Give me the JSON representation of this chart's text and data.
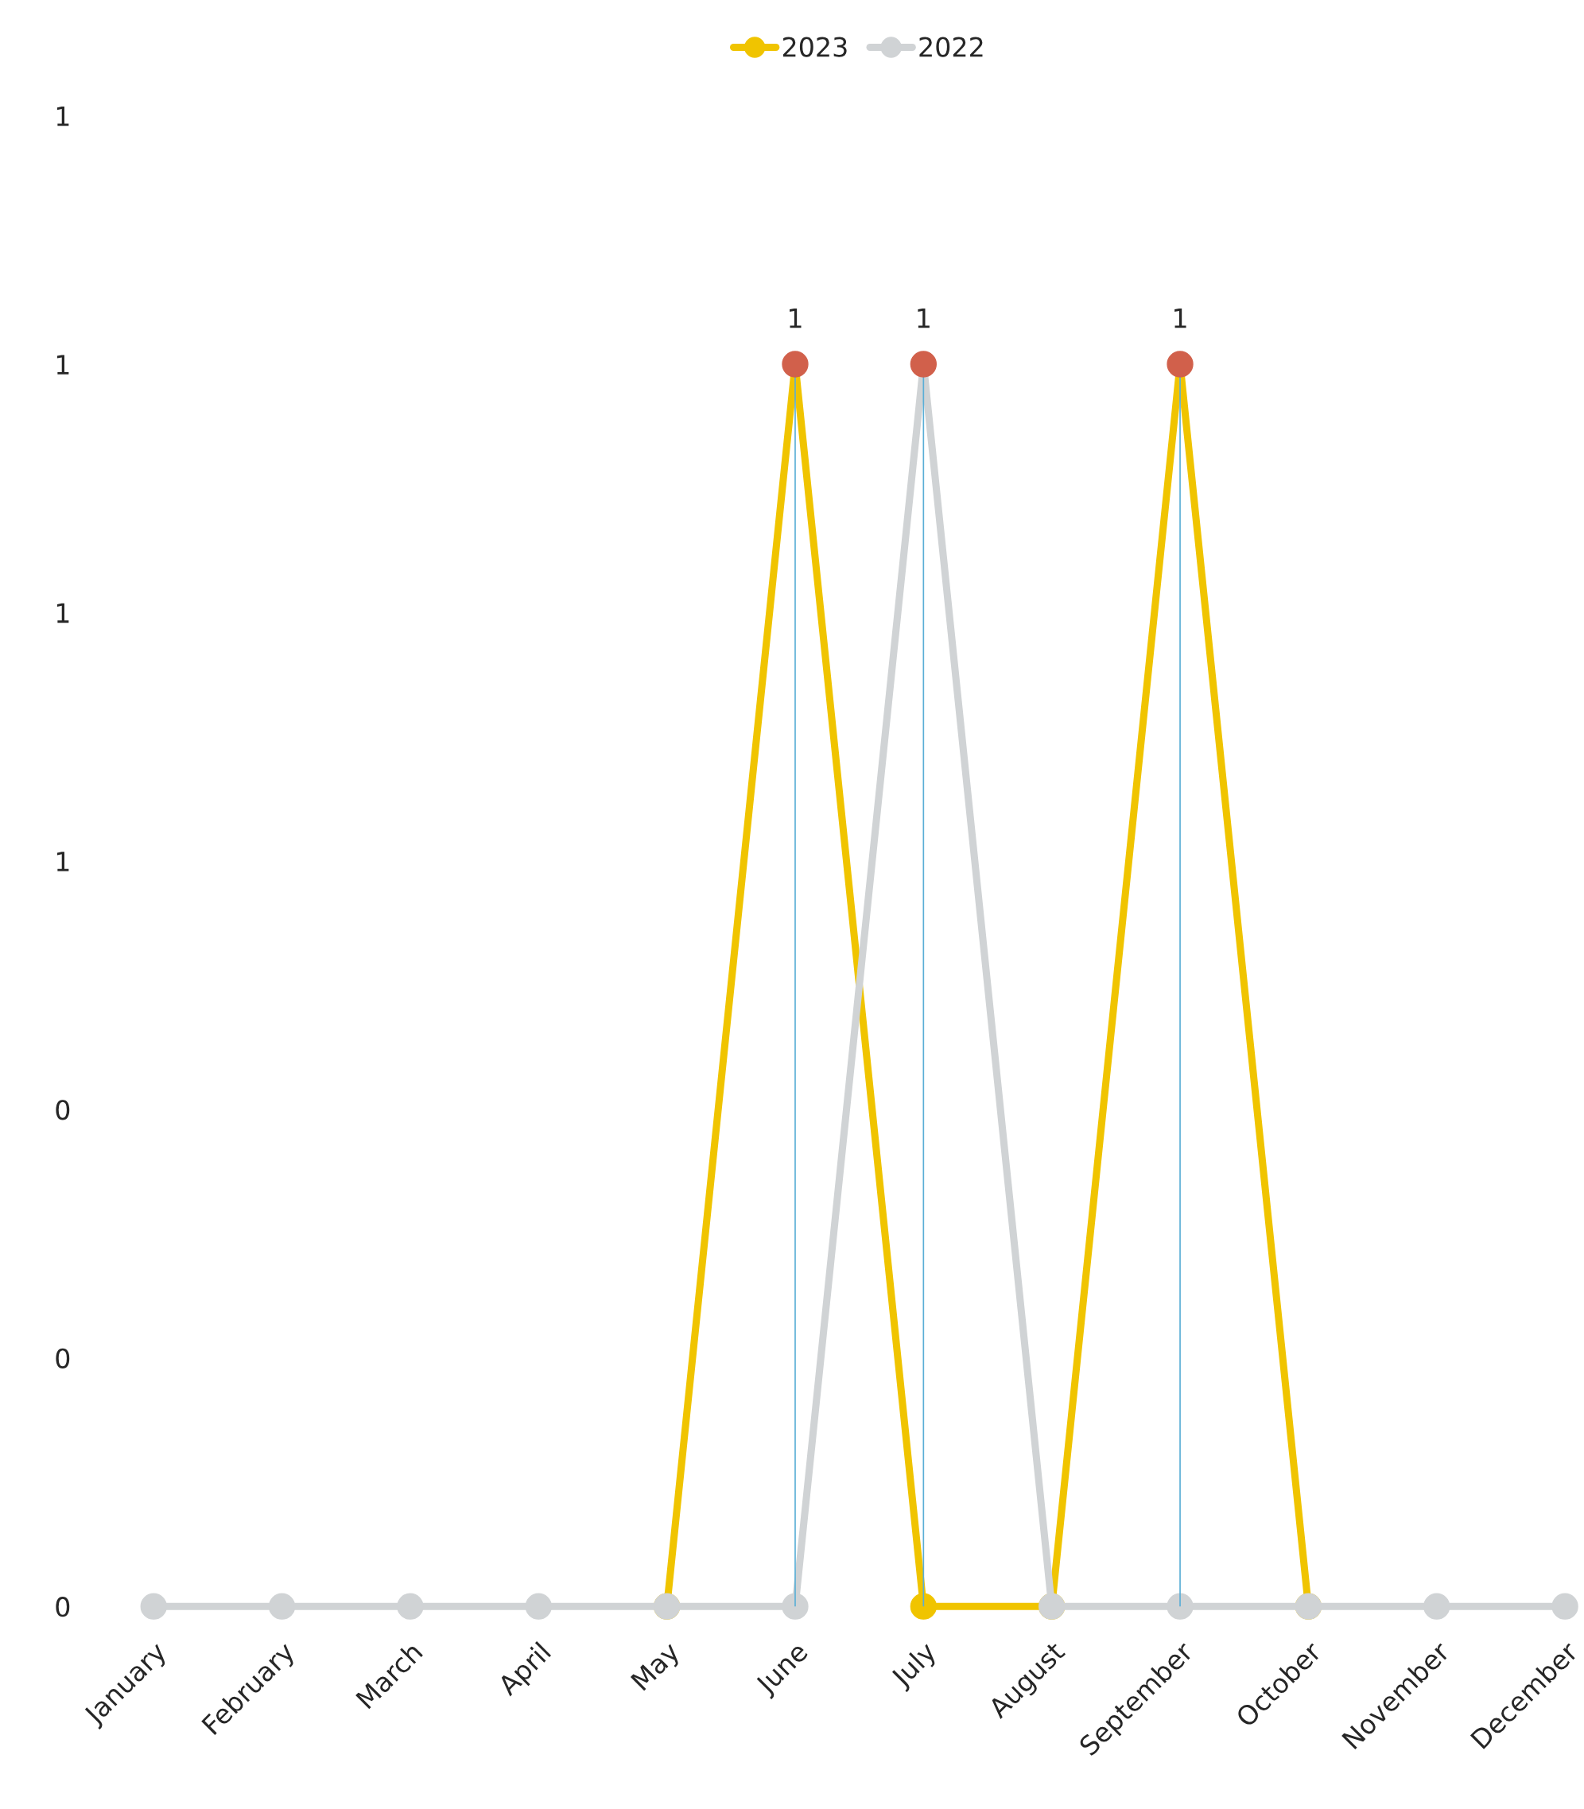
{
  "chart_data": {
    "type": "line",
    "categories": [
      "January",
      "February",
      "March",
      "April",
      "May",
      "June",
      "July",
      "August",
      "September",
      "October",
      "November",
      "December"
    ],
    "series": [
      {
        "name": "2023",
        "color": "#f0c400",
        "values": [
          null,
          null,
          null,
          null,
          0,
          1,
          0,
          0,
          1,
          0,
          null,
          null
        ],
        "colors": [
          "#f0c400",
          "#f0c400",
          "#f0c400",
          "#f0c400",
          "#f0c400",
          "#d1604b",
          "#f0c400",
          "#f0c400",
          "#d1604b",
          "#f0c400",
          "#f0c400",
          "#f0c400"
        ],
        "value_labels": [
          null,
          null,
          null,
          null,
          null,
          "1",
          null,
          null,
          "1",
          null,
          null,
          null
        ]
      },
      {
        "name": "2022",
        "color": "#d0d3d5",
        "values": [
          0,
          0,
          0,
          0,
          0,
          0,
          1,
          0,
          0,
          0,
          0,
          0
        ],
        "colors": [
          "#d0d3d5",
          "#d0d3d5",
          "#d0d3d5",
          "#d0d3d5",
          "#d0d3d5",
          "#d0d3d5",
          "#d1604b",
          "#d0d3d5",
          "#d0d3d5",
          "#d0d3d5",
          "#d0d3d5",
          "#d0d3d5"
        ],
        "value_labels": [
          null,
          null,
          null,
          null,
          null,
          null,
          "1",
          null,
          null,
          null,
          null,
          null
        ]
      }
    ],
    "ref_lines": [
      {
        "axis": "x",
        "value": "June",
        "color": "#5aaed6"
      },
      {
        "axis": "x",
        "value": "July",
        "color": "#5aaed6"
      },
      {
        "axis": "x",
        "value": "September",
        "color": "#5aaed6"
      }
    ],
    "ylim": [
      0,
      1.2
    ],
    "yticks": [
      {
        "value": 0,
        "label": "0"
      },
      {
        "value": 0.2,
        "label": "0"
      },
      {
        "value": 0.4,
        "label": "0"
      },
      {
        "value": 0.6,
        "label": "1"
      },
      {
        "value": 0.8,
        "label": "1"
      },
      {
        "value": 1.0,
        "label": "1"
      },
      {
        "value": 1.2,
        "label": "1"
      }
    ],
    "marker": "circle",
    "line_style": "solid",
    "grid": false,
    "legend": "top"
  }
}
